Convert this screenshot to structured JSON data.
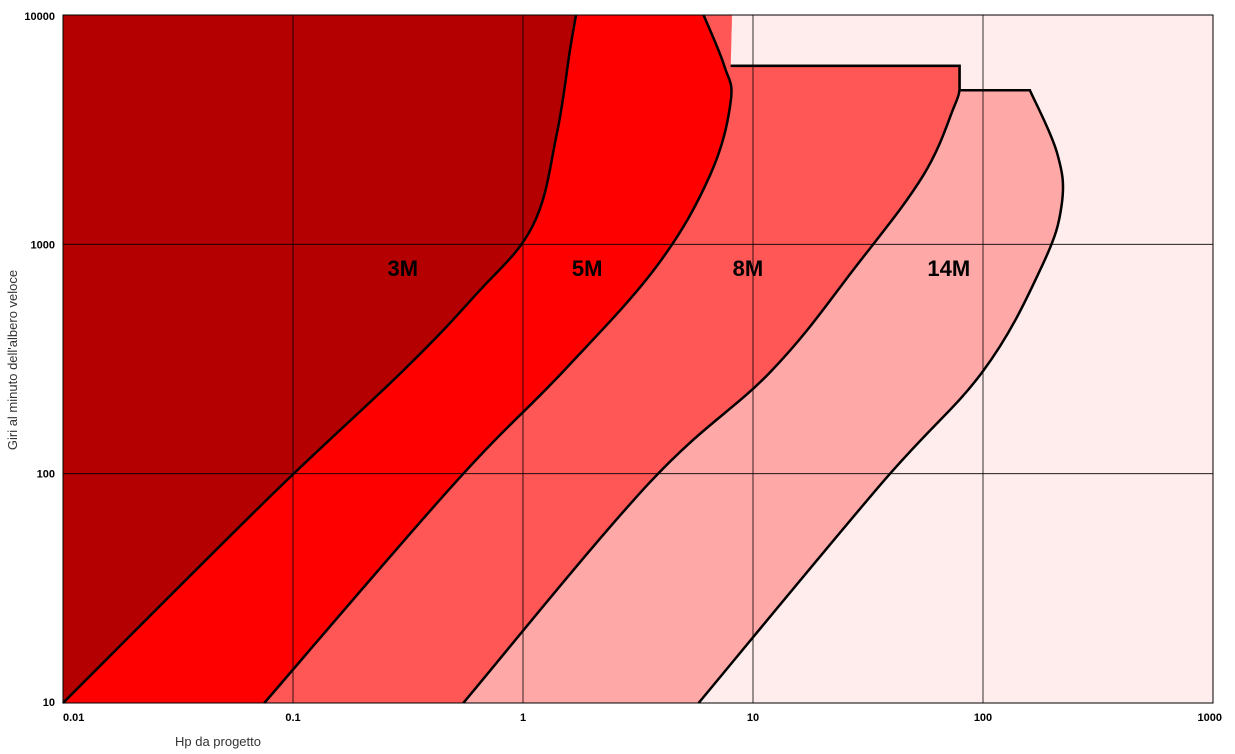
{
  "chart_data": {
    "type": "area",
    "xlabel": "Hp da progetto",
    "ylabel": "Giri al minuto dell'albero veloce",
    "x_scale": "log",
    "y_scale": "log",
    "xlim": [
      0.01,
      1000
    ],
    "ylim": [
      10,
      10000
    ],
    "x_ticks": [
      "0.01",
      "0.1",
      "1",
      "10",
      "100",
      "1000"
    ],
    "y_ticks": [
      "10",
      "100",
      "1000",
      "10000"
    ],
    "grid": true,
    "colors": {
      "background": "#ffecec",
      "3M": "#b40000",
      "5M": "#ff0000",
      "8M": "#ff5656",
      "14M": "#ffa8a8",
      "grid": "#000000"
    },
    "series": [
      {
        "name": "3M",
        "label": "3M",
        "boundary": [
          [
            0.01,
            10
          ],
          [
            0.08,
            80
          ],
          [
            0.3,
            280
          ],
          [
            0.62,
            600
          ],
          [
            1.1,
            1200
          ],
          [
            1.4,
            3000
          ],
          [
            1.6,
            7000
          ],
          [
            1.7,
            10000
          ]
        ]
      },
      {
        "name": "5M",
        "label": "5M",
        "boundary": [
          [
            0.075,
            10
          ],
          [
            0.5,
            90
          ],
          [
            1.5,
            280
          ],
          [
            3.8,
            800
          ],
          [
            6.5,
            2000
          ],
          [
            8.0,
            4200
          ],
          [
            7.5,
            6000
          ],
          [
            6.1,
            10000
          ]
        ]
      },
      {
        "name": "8M",
        "label": "8M",
        "boundary": [
          [
            0.55,
            10
          ],
          [
            3.5,
            90
          ],
          [
            12,
            280
          ],
          [
            28,
            800
          ],
          [
            55,
            2000
          ],
          [
            75,
            4000
          ],
          [
            79,
            4700
          ],
          [
            79,
            6000
          ],
          [
            8.0,
            6000
          ]
        ]
      },
      {
        "name": "14M",
        "label": "14M",
        "boundary": [
          [
            5.8,
            10
          ],
          [
            36,
            90
          ],
          [
            100,
            280
          ],
          [
            180,
            800
          ],
          [
            220,
            1500
          ],
          [
            210,
            2500
          ],
          [
            160,
            4700
          ],
          [
            79,
            4700
          ]
        ]
      }
    ],
    "labels": [
      {
        "text": "3M",
        "x": 0.3,
        "y": 790
      },
      {
        "text": "5M",
        "x": 1.9,
        "y": 790
      },
      {
        "text": "8M",
        "x": 9.5,
        "y": 790
      },
      {
        "text": "14M",
        "x": 71,
        "y": 790
      }
    ]
  }
}
